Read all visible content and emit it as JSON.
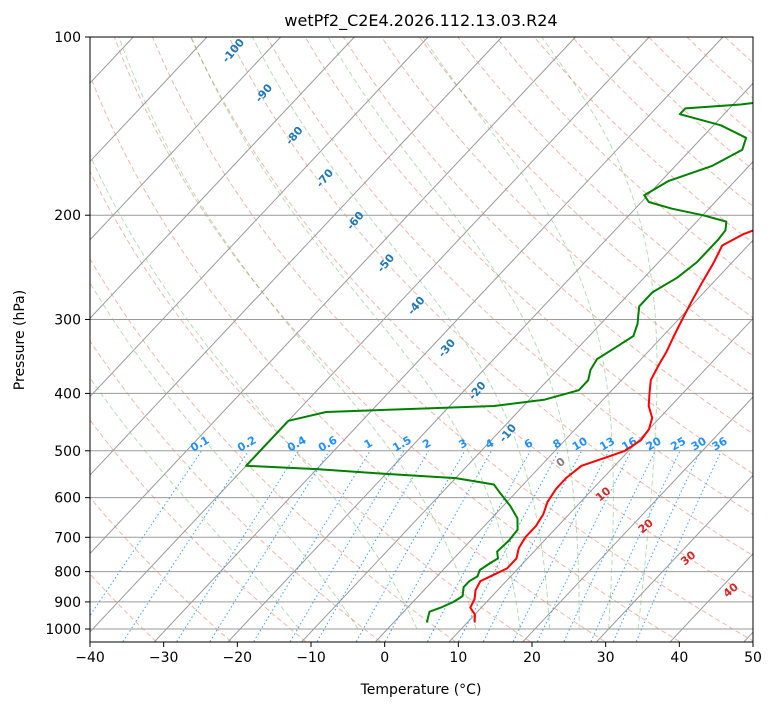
{
  "chart_data": {
    "type": "line",
    "title": "wetPf2_C2E4.2026.112.13.03.R24",
    "xlabel": "Temperature (°C)",
    "ylabel": "Pressure (hPa)",
    "xlim": [
      -40,
      50
    ],
    "ylim_pressure_hPa": [
      1050,
      100
    ],
    "x_ticks": [
      "−40",
      "−30",
      "−20",
      "−10",
      "0",
      "10",
      "20",
      "30",
      "40",
      "50"
    ],
    "y_ticks": [
      "100",
      "200",
      "300",
      "400",
      "500",
      "600",
      "700",
      "800",
      "900",
      "1000"
    ],
    "series": [
      {
        "name": "temperature",
        "color": "#ff0000",
        "points": [
          [
            26,
            100
          ],
          [
            25,
            110
          ],
          [
            24,
            120
          ],
          [
            22.5,
            130
          ],
          [
            21,
            138
          ],
          [
            19,
            145
          ],
          [
            16,
            152
          ],
          [
            12,
            160
          ],
          [
            9,
            168
          ],
          [
            5,
            176
          ],
          [
            3.5,
            185
          ],
          [
            3,
            195
          ],
          [
            1,
            205
          ],
          [
            -2,
            215
          ],
          [
            -3.5,
            225
          ],
          [
            -2.5,
            240
          ],
          [
            -1.5,
            260
          ],
          [
            -0.5,
            280
          ],
          [
            0.5,
            300
          ],
          [
            1.5,
            320
          ],
          [
            2.5,
            340
          ],
          [
            3.2,
            360
          ],
          [
            4,
            380
          ],
          [
            5.5,
            400
          ],
          [
            7,
            420
          ],
          [
            9,
            440
          ],
          [
            10,
            460
          ],
          [
            10.3,
            480
          ],
          [
            9.5,
            500
          ],
          [
            7.5,
            515
          ],
          [
            5.5,
            530
          ],
          [
            5,
            555
          ],
          [
            5,
            580
          ],
          [
            5.5,
            610
          ],
          [
            6.5,
            640
          ],
          [
            7,
            670
          ],
          [
            7,
            700
          ],
          [
            7.5,
            730
          ],
          [
            8.5,
            760
          ],
          [
            8.5,
            790
          ],
          [
            7.5,
            810
          ],
          [
            6.5,
            830
          ],
          [
            7,
            860
          ],
          [
            8,
            890
          ],
          [
            8.5,
            920
          ],
          [
            10,
            945
          ],
          [
            11,
            975
          ]
        ]
      },
      {
        "name": "dewpoint",
        "color": "#008000",
        "points": [
          [
            -17,
            100
          ],
          [
            -19,
            105
          ],
          [
            -20.5,
            110
          ],
          [
            -19,
            115
          ],
          [
            -14,
            118
          ],
          [
            -12,
            122
          ],
          [
            -13,
            127
          ],
          [
            -19,
            130
          ],
          [
            -26,
            132
          ],
          [
            -26,
            135
          ],
          [
            -19,
            141
          ],
          [
            -14,
            148
          ],
          [
            -13,
            155
          ],
          [
            -15,
            165
          ],
          [
            -19,
            175
          ],
          [
            -20.5,
            185
          ],
          [
            -19,
            190
          ],
          [
            -15,
            195
          ],
          [
            -10,
            200
          ],
          [
            -6,
            205
          ],
          [
            -5,
            212
          ],
          [
            -4.8,
            220
          ],
          [
            -4.8,
            240
          ],
          [
            -5.5,
            255
          ],
          [
            -7,
            270
          ],
          [
            -7,
            285
          ],
          [
            -6,
            295
          ],
          [
            -5,
            305
          ],
          [
            -4,
            320
          ],
          [
            -5,
            335
          ],
          [
            -6,
            350
          ],
          [
            -5.5,
            365
          ],
          [
            -4.5,
            380
          ],
          [
            -4.5,
            395
          ],
          [
            -8,
            410
          ],
          [
            -14,
            420
          ],
          [
            -25,
            425
          ],
          [
            -36,
            430
          ],
          [
            -40,
            445
          ],
          [
            -40,
            530
          ],
          [
            -30,
            537
          ],
          [
            -20,
            547
          ],
          [
            -10,
            556
          ],
          [
            -4,
            570
          ],
          [
            -2,
            590
          ],
          [
            1,
            620
          ],
          [
            3.5,
            650
          ],
          [
            5,
            680
          ],
          [
            5.2,
            710
          ],
          [
            5,
            740
          ],
          [
            6,
            760
          ],
          [
            5.5,
            775
          ],
          [
            5,
            795
          ],
          [
            5.5,
            815
          ],
          [
            5,
            830
          ],
          [
            5,
            850
          ],
          [
            5.5,
            865
          ],
          [
            6,
            880
          ],
          [
            5.5,
            900
          ],
          [
            4.5,
            920
          ],
          [
            3.5,
            935
          ],
          [
            4,
            955
          ],
          [
            4.5,
            975
          ]
        ]
      }
    ],
    "dry_adiabat_labels": [
      "-100",
      "-90",
      "-80",
      "-70",
      "-60",
      "-50",
      "-40",
      "-30",
      "-20",
      "-10"
    ],
    "mixing_ratio_labels": [
      "0.1",
      "0.2",
      "0.4",
      "0.6",
      "1",
      "1.5",
      "2",
      "3",
      "4",
      "6",
      "8",
      "10",
      "13",
      "16",
      "20",
      "25",
      "30",
      "36"
    ],
    "moist_adiabat_labels": [
      "0",
      "10",
      "20",
      "30",
      "40"
    ],
    "colors": {
      "temperature": "#ff0000",
      "dewpoint": "#008000",
      "isotherm": "#9a9a9a",
      "isobar": "#9a9a9a",
      "dry_adiabat": "#e06040",
      "moist_adiabat": "#2ca02c",
      "mixing_ratio": "#1e90ff",
      "dry_label": "#1f77b4",
      "moist_label": "#d62728",
      "zero_label": "#7f7f7f"
    }
  }
}
